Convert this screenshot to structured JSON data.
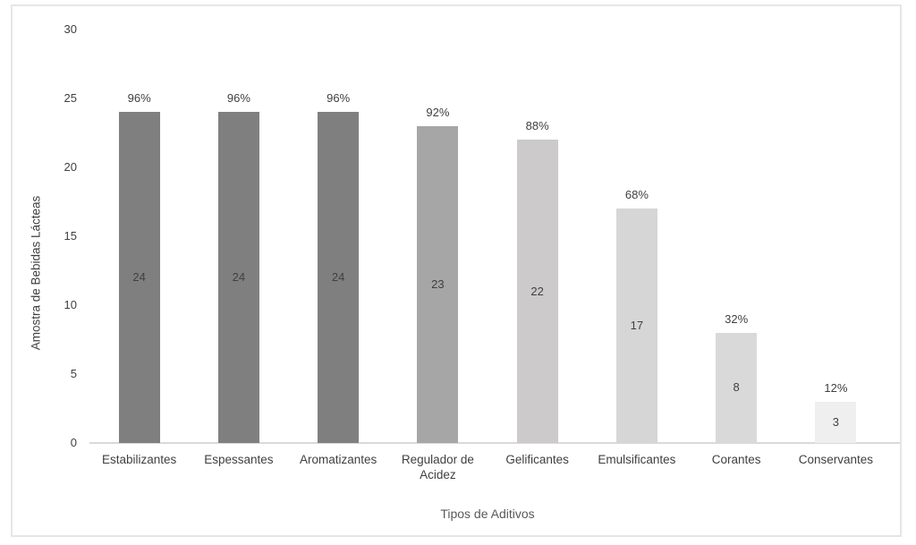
{
  "figure": {
    "background_color": "#ffffff",
    "frame_border_color": "#e6e6e6",
    "axis_line_color": "#d9d9d9",
    "tick_text_color": "#404040",
    "label_text_color": "#404040",
    "axis_title_color": "#595959"
  },
  "chart_data": {
    "type": "bar",
    "title": "",
    "xlabel": "Tipos de Aditivos",
    "ylabel": "Amostra de Bebidas Lácteas",
    "ylim": [
      0,
      30
    ],
    "y_ticks": [
      0,
      5,
      10,
      15,
      20,
      25,
      30
    ],
    "grid": false,
    "legend": "none",
    "categories": [
      "Estabilizantes",
      "Espessantes",
      "Aromatizantes",
      "Regulador de Acidez",
      "Gelificantes",
      "Emulsificantes",
      "Corantes",
      "Conservantes"
    ],
    "values": [
      24,
      24,
      24,
      23,
      22,
      17,
      8,
      3
    ],
    "percent_labels": [
      "96%",
      "96%",
      "96%",
      "92%",
      "88%",
      "68%",
      "32%",
      "12%"
    ],
    "bar_colors": [
      "#7f7f7f",
      "#7f7f7f",
      "#7f7f7f",
      "#a6a6a6",
      "#cccaca",
      "#d6d6d6",
      "#d9d9d9",
      "#efefef"
    ],
    "value_label_position": "center",
    "percent_label_position": "outside-end"
  }
}
